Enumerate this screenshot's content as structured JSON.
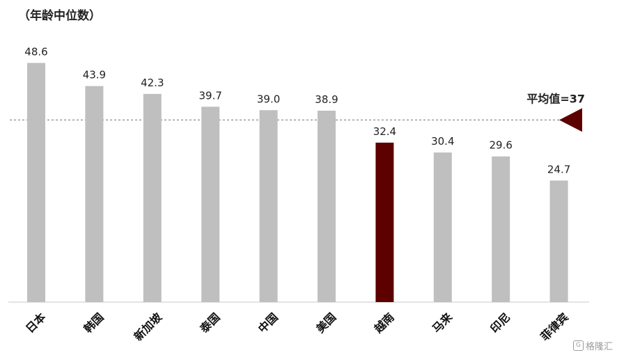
{
  "chart_data": {
    "type": "bar",
    "ylabel": "（年龄中位数）",
    "categories": [
      "日本",
      "韩国",
      "新加坡",
      "泰国",
      "中国",
      "美国",
      "越南",
      "马来",
      "印尼",
      "菲律宾"
    ],
    "values": [
      48.6,
      43.9,
      42.3,
      39.7,
      39.0,
      38.9,
      32.4,
      30.4,
      29.6,
      24.7
    ],
    "value_labels": [
      "48.6",
      "43.9",
      "42.3",
      "39.7",
      "39.0",
      "38.9",
      "32.4",
      "30.4",
      "29.6",
      "24.7"
    ],
    "highlight_category": "越南",
    "reference_line": {
      "value": 37,
      "label": "平均值=37"
    },
    "ylim": [
      0,
      55
    ],
    "grid": false,
    "legend": "none",
    "colors": {
      "bar": "#bfbfbf",
      "highlight": "#5c0000",
      "reference_marker": "#5c0000",
      "reference_line": "#8c8c8c",
      "axis": "#c8c8c8",
      "text": "#222222"
    }
  },
  "watermark": {
    "icon": "g-logo-icon",
    "text": "格隆汇"
  }
}
